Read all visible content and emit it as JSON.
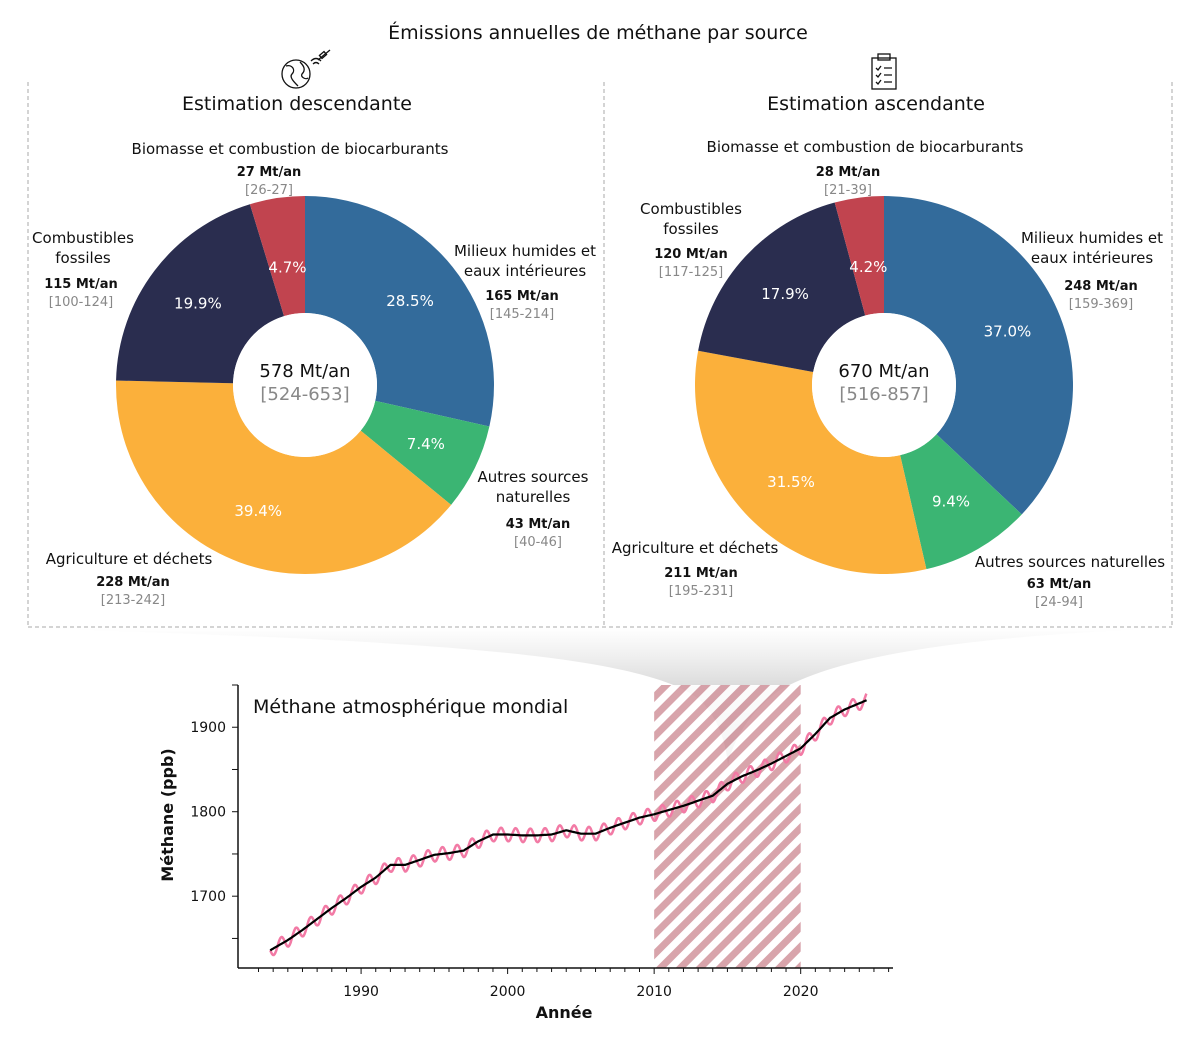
{
  "title": "Émissions annuelles de méthane par source",
  "colors": {
    "wetlands": "#336b9b",
    "other_natural": "#3bb573",
    "agriculture": "#fbb03b",
    "fossil": "#2a2d4f",
    "biomass": "#c1444f",
    "line_raw": "#f27aa5",
    "line_smooth": "#000000",
    "hatch": "#d49aa2"
  },
  "chart_data": [
    {
      "type": "pie",
      "title": "Estimation descendante",
      "icon": "globe-satellite-icon",
      "total": "578 Mt/an",
      "total_range": "[524-653]",
      "slices": [
        {
          "key": "wetlands",
          "label": [
            "Milieux humides et",
            "eaux intérieures"
          ],
          "value": 165,
          "value_label": "165 Mt/an",
          "range": "[145-214]",
          "percent": 28.5,
          "percent_label": "28.5%"
        },
        {
          "key": "other_natural",
          "label": [
            "Autres sources",
            "naturelles"
          ],
          "value": 43,
          "value_label": "43 Mt/an",
          "range": "[40-46]",
          "percent": 7.4,
          "percent_label": "7.4%"
        },
        {
          "key": "agriculture",
          "label": [
            "Agriculture et déchets"
          ],
          "value": 228,
          "value_label": "228 Mt/an",
          "range": "[213-242]",
          "percent": 39.4,
          "percent_label": "39.4%"
        },
        {
          "key": "fossil",
          "label": [
            "Combustibles",
            "fossiles"
          ],
          "value": 115,
          "value_label": "115 Mt/an",
          "range": "[100-124]",
          "percent": 19.9,
          "percent_label": "19.9%"
        },
        {
          "key": "biomass",
          "label": [
            "Biomasse et combustion de biocarburants"
          ],
          "value": 27,
          "value_label": "27 Mt/an",
          "range": "[26-27]",
          "percent": 4.7,
          "percent_label": "4.7%"
        }
      ]
    },
    {
      "type": "pie",
      "title": "Estimation ascendante",
      "icon": "clipboard-checklist-icon",
      "total": "670 Mt/an",
      "total_range": "[516-857]",
      "slices": [
        {
          "key": "wetlands",
          "label": [
            "Milieux humides et",
            "eaux intérieures"
          ],
          "value": 248,
          "value_label": "248 Mt/an",
          "range": "[159-369]",
          "percent": 37.0,
          "percent_label": "37.0%"
        },
        {
          "key": "other_natural",
          "label": [
            "Autres sources naturelles"
          ],
          "value": 63,
          "value_label": "63 Mt/an",
          "range": "[24-94]",
          "percent": 9.4,
          "percent_label": "9.4%"
        },
        {
          "key": "agriculture",
          "label": [
            "Agriculture et déchets"
          ],
          "value": 211,
          "value_label": "211 Mt/an",
          "range": "[195-231]",
          "percent": 31.5,
          "percent_label": "31.5%"
        },
        {
          "key": "fossil",
          "label": [
            "Combustibles",
            "fossiles"
          ],
          "value": 120,
          "value_label": "120 Mt/an",
          "range": "[117-125]",
          "percent": 17.9,
          "percent_label": "17.9%"
        },
        {
          "key": "biomass",
          "label": [
            "Biomasse et combustion de biocarburants"
          ],
          "value": 28,
          "value_label": "28 Mt/an",
          "range": "[21-39]",
          "percent": 4.2,
          "percent_label": "4.2%"
        }
      ]
    },
    {
      "type": "line",
      "title": "Méthane atmosphérique mondial",
      "xlabel": "Année",
      "ylabel": "Méthane (ppb)",
      "xlim": [
        1981.6,
        2026.3
      ],
      "ylim": [
        1615,
        1950
      ],
      "xticks": [
        1990,
        2000,
        2010,
        2020
      ],
      "yticks": [
        1700,
        1800,
        1900
      ],
      "highlight_period": [
        2010,
        2020
      ],
      "seasonal_amplitude_ppb": 8,
      "series": [
        {
          "name": "smoothed",
          "x": [
            1983.8,
            1985,
            1986,
            1987,
            1988,
            1989,
            1990,
            1991,
            1992,
            1993,
            1994,
            1995,
            1996,
            1997,
            1998,
            1999,
            2000,
            2001,
            2002,
            2003,
            2004,
            2005,
            2006,
            2007,
            2008,
            2009,
            2010,
            2011,
            2012,
            2013,
            2014,
            2015,
            2016,
            2017,
            2018,
            2019,
            2020,
            2021,
            2022,
            2023,
            2024.5
          ],
          "y": [
            1636,
            1648,
            1660,
            1673,
            1686,
            1698,
            1711,
            1722,
            1737,
            1737,
            1743,
            1749,
            1751,
            1754,
            1765,
            1773,
            1773,
            1772,
            1772,
            1773,
            1778,
            1774,
            1774,
            1781,
            1787,
            1793,
            1797,
            1802,
            1807,
            1813,
            1819,
            1833,
            1842,
            1849,
            1857,
            1866,
            1875,
            1892,
            1911,
            1921,
            1932
          ]
        }
      ]
    }
  ]
}
